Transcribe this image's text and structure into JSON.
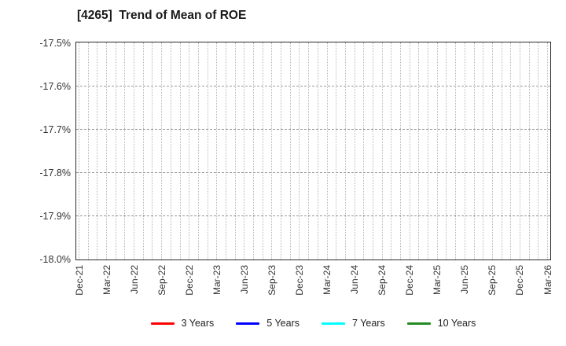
{
  "title": "[4265]  Trend of Mean of ROE",
  "chart_data": {
    "type": "line",
    "title": "[4265]  Trend of Mean of ROE",
    "xlabel": "",
    "ylabel": "",
    "y_unit": "%",
    "ylim": [
      -18.0,
      -17.5
    ],
    "y_tick_labels": [
      "-17.5%",
      "-17.6%",
      "-17.7%",
      "-17.8%",
      "-17.9%",
      "-18.0%"
    ],
    "x_tick_labels": [
      "Dec-21",
      "Mar-22",
      "Jun-22",
      "Sep-22",
      "Dec-22",
      "Mar-23",
      "Jun-23",
      "Sep-23",
      "Dec-23",
      "Mar-24",
      "Jun-24",
      "Sep-24",
      "Dec-24",
      "Mar-25",
      "Jun-25",
      "Sep-25",
      "Dec-25",
      "Mar-26"
    ],
    "grid": true,
    "minor_x_gridlines_per_label_interval": 3,
    "legend_position": "bottom-center",
    "series": [
      {
        "name": "3 Years",
        "color": "#ff0000",
        "values": []
      },
      {
        "name": "5 Years",
        "color": "#0000ff",
        "values": []
      },
      {
        "name": "7 Years",
        "color": "#00ffff",
        "values": []
      },
      {
        "name": "10 Years",
        "color": "#228B22",
        "values": []
      }
    ],
    "plot_area_empty": true
  },
  "style_colors": {
    "background": "#ffffff",
    "plot_border": "#2b2b2b",
    "minor_grid": "#b8b8b8",
    "major_grid": "#9a9a9a",
    "tick_label": "#333333",
    "title_text": "#1a1a1a"
  }
}
